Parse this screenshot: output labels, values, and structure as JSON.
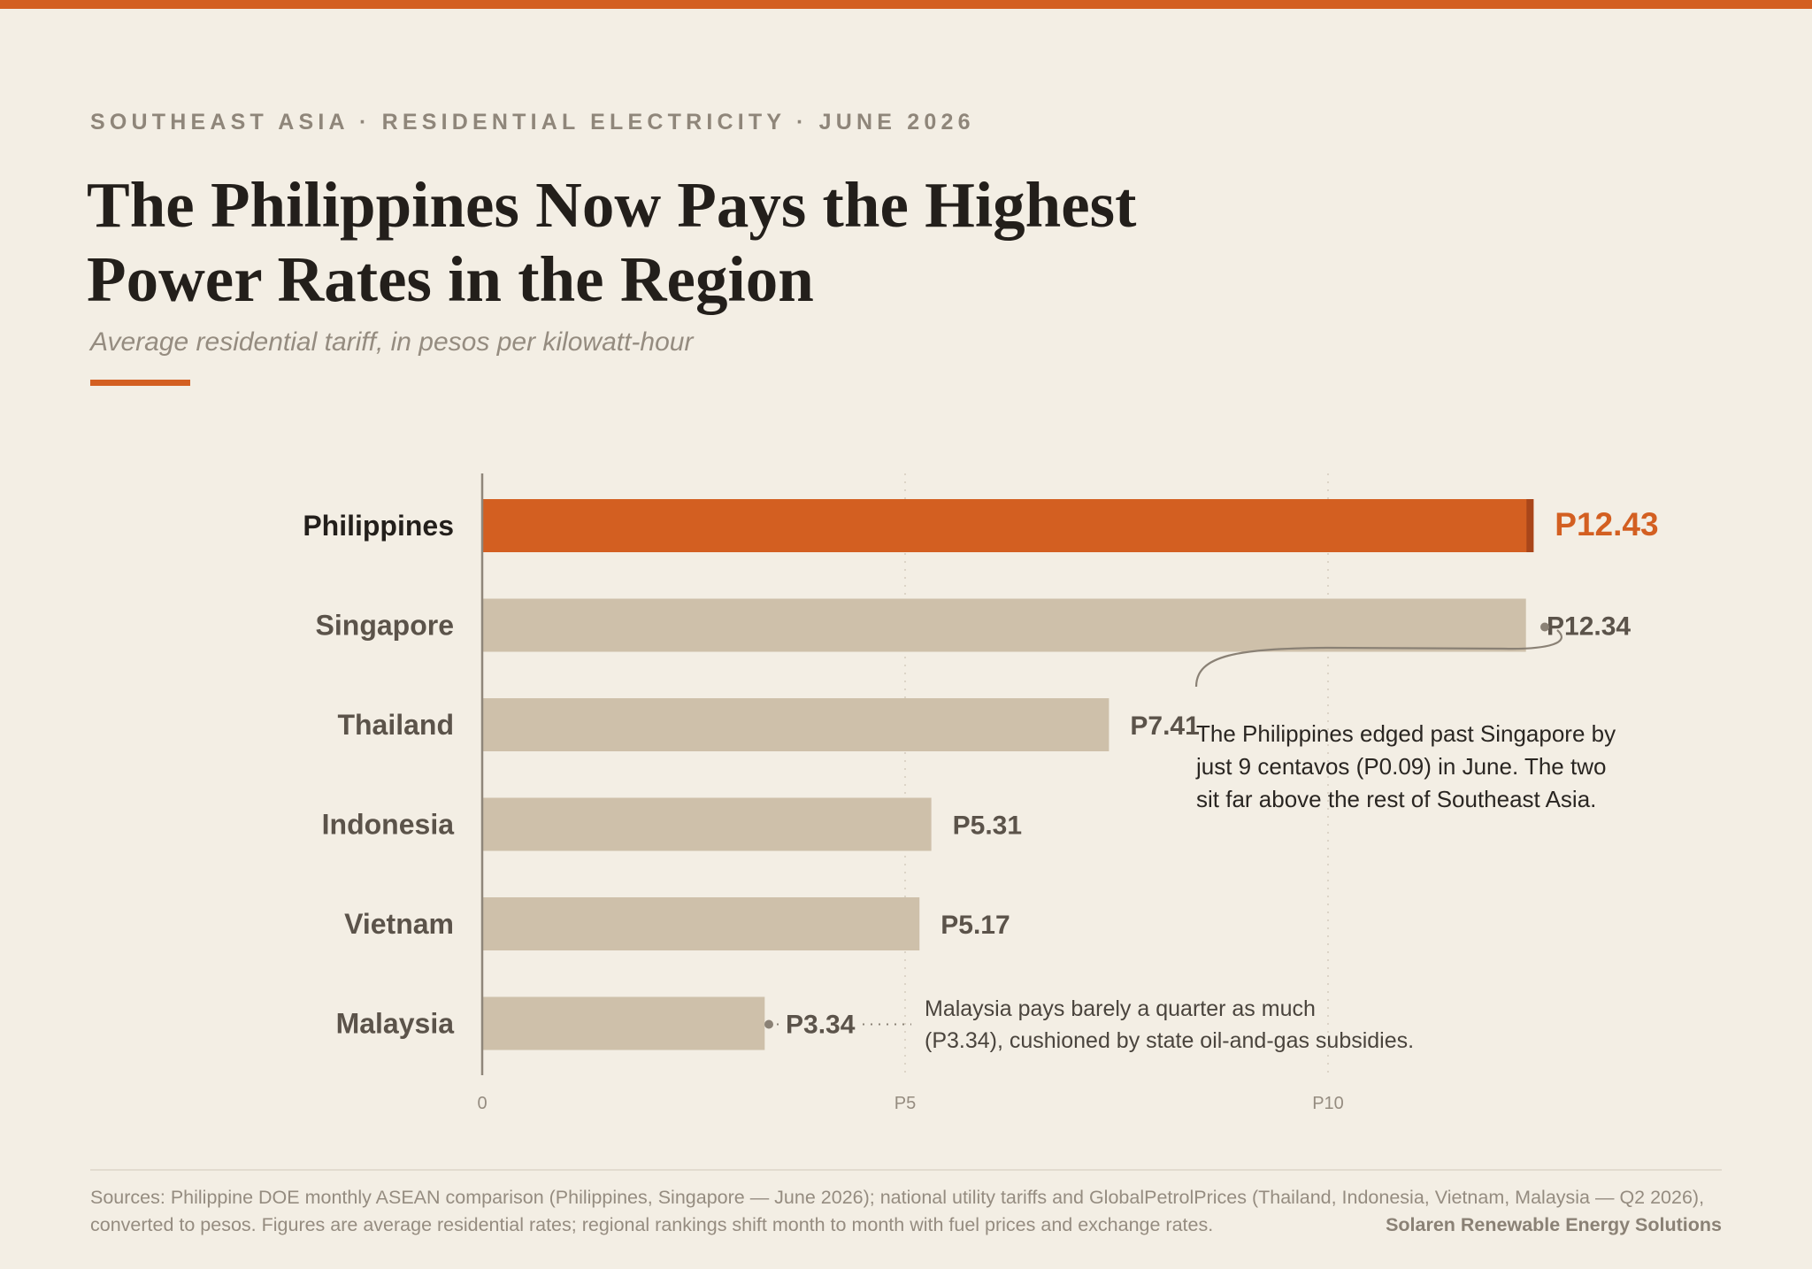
{
  "header": {
    "kicker": "SOUTHEAST ASIA · RESIDENTIAL ELECTRICITY · JUNE 2026",
    "title": "The Philippines Now Pays the Highest Power Rates in the Region",
    "subtitle": "Average residential tariff, in pesos per kilowatt-hour"
  },
  "colors": {
    "accent": "#d35f21",
    "accent_dark": "#a9461a",
    "bar": "#cec0aa",
    "background": "#f3eee4",
    "label_dark": "#231f1b",
    "label_muted": "#5b534a"
  },
  "chart_data": {
    "type": "bar",
    "orientation": "horizontal",
    "categories": [
      "Philippines",
      "Singapore",
      "Thailand",
      "Indonesia",
      "Vietnam",
      "Malaysia"
    ],
    "values": [
      12.43,
      12.34,
      7.41,
      5.31,
      5.17,
      3.34
    ],
    "value_labels": [
      "P12.43",
      "P12.34",
      "P7.41",
      "P5.31",
      "P5.17",
      "P3.34"
    ],
    "highlight": "Philippines",
    "xlim": [
      0,
      14
    ],
    "xticks": [
      0,
      5,
      10
    ],
    "xtick_labels": [
      "0",
      "P5",
      "P10"
    ],
    "grid": true,
    "annotations": [
      {
        "target": "Singapore",
        "lines": [
          "The Philippines edged past Singapore by",
          "just 9 centavos (P0.09) in June. The two",
          "sit far above the rest of Southeast Asia."
        ]
      },
      {
        "target": "Malaysia",
        "lines": [
          "Malaysia pays barely a quarter as much",
          "(P3.34), cushioned by state oil-and-gas subsidies."
        ]
      }
    ]
  },
  "footer": {
    "sources": "Sources: Philippine DOE monthly ASEAN comparison (Philippines, Singapore — June 2026); national utility tariffs and GlobalPetrolPrices (Thailand, Indonesia, Vietnam, Malaysia — Q2 2026), converted to pesos. Figures are average residential rates; regional rankings shift month to month with fuel prices and exchange rates.",
    "brand": "Solaren Renewable Energy Solutions"
  }
}
